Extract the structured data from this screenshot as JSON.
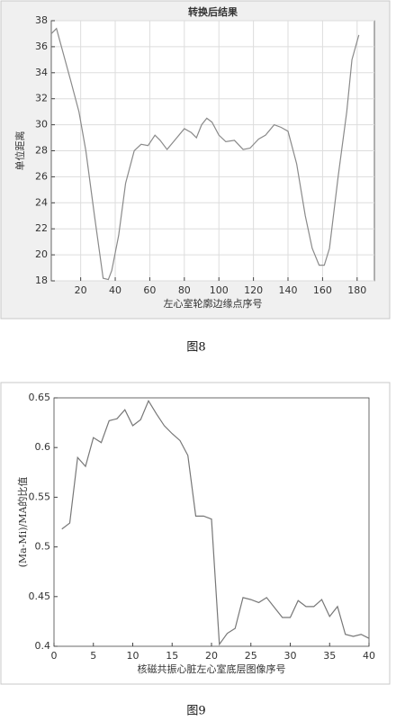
{
  "chart_data": [
    {
      "type": "line",
      "title": "转换后结果",
      "x_label": "左心室轮廓边缘点序号",
      "y_label": "单位距离",
      "caption": "图8",
      "grid": true,
      "xlim": [
        3,
        190
      ],
      "ylim": [
        18,
        38
      ],
      "xticks": [
        20,
        40,
        60,
        80,
        100,
        120,
        140,
        160,
        180
      ],
      "yticks": [
        18,
        20,
        22,
        24,
        26,
        28,
        30,
        32,
        34,
        36,
        38
      ],
      "x": [
        3,
        6,
        14,
        19,
        23,
        28,
        33,
        36,
        38,
        42,
        46,
        51,
        55,
        59,
        63,
        66,
        70,
        75,
        80,
        84,
        87,
        90,
        93,
        96,
        100,
        104,
        109,
        114,
        118,
        123,
        127,
        132,
        136,
        140,
        145,
        150,
        154,
        158,
        161,
        164,
        169,
        174,
        177,
        181
      ],
      "series": [
        {
          "color": "#8a8a8a",
          "values": [
            37.0,
            37.4,
            33.5,
            31,
            28,
            23,
            18.2,
            18.1,
            18.8,
            21.5,
            25.5,
            28,
            28.5,
            28.4,
            29.2,
            28.8,
            28.1,
            28.9,
            29.7,
            29.4,
            29,
            30,
            30.5,
            30.2,
            29.2,
            28.7,
            28.8,
            28.1,
            28.2,
            28.9,
            29.2,
            30,
            29.8,
            29.5,
            27,
            23,
            20.5,
            19.2,
            19.2,
            20.5,
            26,
            31,
            35,
            36.9
          ]
        }
      ]
    },
    {
      "type": "line",
      "x_label": "核磁共振心脏左心室底层图像序号",
      "y_label": "(Ma-Mi)/MA的比值",
      "caption": "图9",
      "grid": false,
      "xlim": [
        0,
        40
      ],
      "ylim": [
        0.4,
        0.65
      ],
      "xticks": [
        0,
        5,
        10,
        15,
        20,
        25,
        30,
        35,
        40
      ],
      "yticks": [
        0.4,
        0.45,
        0.5,
        0.55,
        0.6,
        0.65
      ],
      "x": [
        1,
        2,
        3,
        4,
        5,
        6,
        7,
        8,
        9,
        10,
        11,
        12,
        13,
        14,
        15,
        16,
        17,
        18,
        19,
        20,
        21,
        22,
        23,
        24,
        25,
        26,
        27,
        28,
        29,
        30,
        31,
        32,
        33,
        34,
        35,
        36,
        37,
        38,
        39,
        40
      ],
      "series": [
        {
          "color": "#777777",
          "values": [
            0.518,
            0.524,
            0.59,
            0.581,
            0.61,
            0.605,
            0.627,
            0.629,
            0.638,
            0.622,
            0.628,
            0.647,
            0.634,
            0.622,
            0.614,
            0.607,
            0.592,
            0.531,
            0.531,
            0.528,
            0.402,
            0.413,
            0.418,
            0.449,
            0.447,
            0.444,
            0.449,
            0.439,
            0.429,
            0.429,
            0.446,
            0.44,
            0.44,
            0.447,
            0.43,
            0.44,
            0.412,
            0.41,
            0.412,
            0.408
          ]
        }
      ]
    }
  ]
}
